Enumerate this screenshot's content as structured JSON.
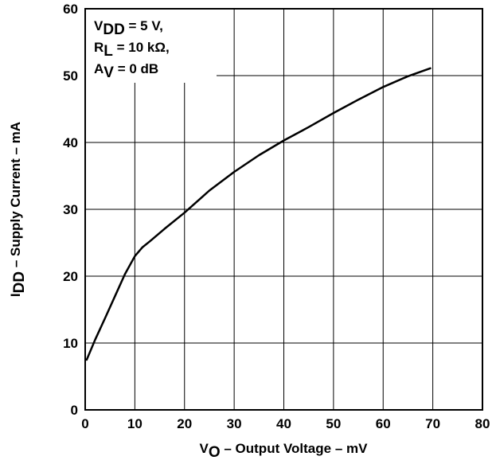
{
  "chart_data": {
    "type": "line",
    "title": "",
    "xlabel": {
      "main": "V",
      "sub": "O",
      "rest": " – Output Voltage – mV"
    },
    "ylabel": {
      "main": "I",
      "sub": "DD",
      "rest": " – Supply Current – mA"
    },
    "xlim": [
      0,
      80
    ],
    "ylim": [
      0,
      60
    ],
    "x_ticks": [
      "0",
      "10",
      "20",
      "30",
      "40",
      "50",
      "60",
      "70",
      "80"
    ],
    "y_ticks": [
      "0",
      "10",
      "20",
      "30",
      "40",
      "50",
      "60"
    ],
    "grid": true,
    "annotation": [
      {
        "main": "V",
        "sub": "DD",
        "rest": " = 5 V,"
      },
      {
        "main": "R",
        "sub": "L",
        "rest": " = 10 kΩ,"
      },
      {
        "main": "A",
        "sub": "V",
        "rest": " = 0 dB"
      }
    ],
    "series": [
      {
        "x": [
          0.3,
          2,
          4,
          6,
          8,
          10,
          11.5,
          13,
          16,
          20,
          25,
          30,
          35,
          40,
          45,
          50,
          55,
          60,
          65,
          69.5
        ],
        "values": [
          7.5,
          10.5,
          13.7,
          17,
          20.3,
          23,
          24.3,
          25.2,
          27.1,
          29.5,
          32.8,
          35.6,
          38.1,
          40.3,
          42.3,
          44.4,
          46.4,
          48.3,
          49.9,
          51.1
        ]
      }
    ],
    "line_color": "#000000"
  }
}
